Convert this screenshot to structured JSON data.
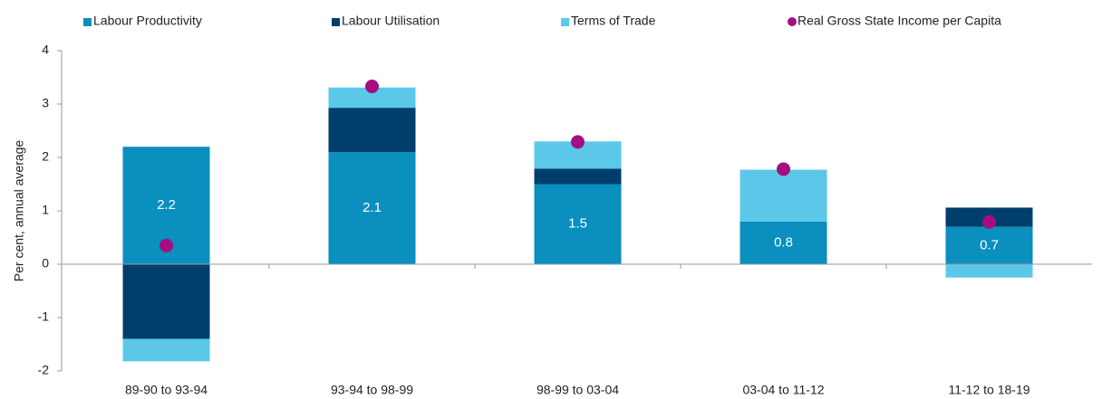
{
  "chart_data": {
    "type": "bar",
    "y_label": "Per cent, annual average",
    "categories": [
      "89-90 to 93-94",
      "93-94 to 98-99",
      "98-99 to 03-04",
      "03-04 to 11-12",
      "11-12 to 18-19"
    ],
    "series": [
      {
        "name": "Labour Productivity",
        "color": "#0a8fbf",
        "values": [
          2.2,
          2.1,
          1.5,
          0.8,
          0.7
        ]
      },
      {
        "name": "Labour Utilisation",
        "color": "#003f6b",
        "values": [
          -1.4,
          0.83,
          0.29,
          0,
          0.36
        ]
      },
      {
        "name": "Terms of Trade",
        "color": "#5bc8ea",
        "values": [
          -0.42,
          0.38,
          0.51,
          0.97,
          -0.25
        ]
      },
      {
        "name": "Real Gross State Income per Capita",
        "color": "#a50e82",
        "type": "dot",
        "values": [
          0.35,
          3.33,
          2.29,
          1.78,
          0.79
        ]
      }
    ],
    "ylim": [
      -2,
      4
    ],
    "yticks": [
      -2,
      -1,
      0,
      1,
      2,
      3,
      4
    ],
    "legend": "top"
  }
}
